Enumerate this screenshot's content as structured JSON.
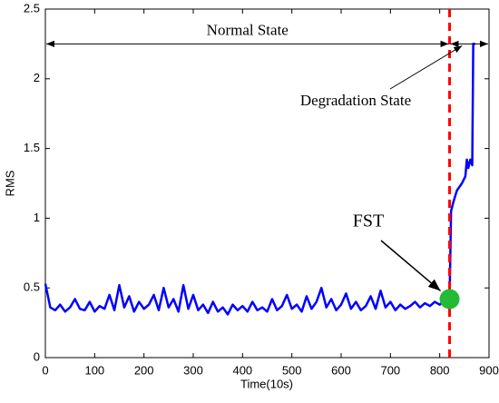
{
  "chart_data": {
    "type": "line",
    "xlabel": "Time(10s)",
    "ylabel": "RMS",
    "xlim": [
      0,
      900
    ],
    "ylim": [
      0,
      2.5
    ],
    "xticks": [
      0,
      100,
      200,
      300,
      400,
      500,
      600,
      700,
      800,
      900
    ],
    "yticks": [
      0,
      0.5,
      1,
      1.5,
      2,
      2.5
    ],
    "series": [
      {
        "color": "#0000ff",
        "x": [
          0,
          10,
          20,
          30,
          40,
          50,
          60,
          70,
          80,
          90,
          100,
          110,
          120,
          130,
          140,
          150,
          160,
          170,
          180,
          190,
          200,
          210,
          220,
          230,
          240,
          250,
          260,
          270,
          280,
          290,
          300,
          310,
          320,
          330,
          340,
          350,
          360,
          370,
          380,
          390,
          400,
          410,
          420,
          430,
          440,
          450,
          460,
          470,
          480,
          490,
          500,
          510,
          520,
          530,
          540,
          550,
          560,
          570,
          580,
          590,
          600,
          610,
          620,
          630,
          640,
          650,
          660,
          670,
          680,
          690,
          700,
          710,
          720,
          730,
          740,
          750,
          760,
          770,
          780,
          790,
          800,
          810,
          820,
          823,
          828,
          835,
          845,
          852,
          855,
          858,
          862,
          866,
          868,
          872
        ],
        "values": [
          0.53,
          0.36,
          0.34,
          0.38,
          0.33,
          0.36,
          0.42,
          0.35,
          0.34,
          0.4,
          0.33,
          0.37,
          0.35,
          0.45,
          0.34,
          0.52,
          0.36,
          0.44,
          0.33,
          0.4,
          0.35,
          0.38,
          0.45,
          0.34,
          0.5,
          0.36,
          0.42,
          0.33,
          0.52,
          0.35,
          0.45,
          0.34,
          0.38,
          0.32,
          0.4,
          0.33,
          0.36,
          0.31,
          0.38,
          0.34,
          0.37,
          0.33,
          0.4,
          0.34,
          0.36,
          0.33,
          0.42,
          0.34,
          0.37,
          0.45,
          0.35,
          0.38,
          0.33,
          0.44,
          0.35,
          0.4,
          0.5,
          0.36,
          0.42,
          0.34,
          0.38,
          0.46,
          0.35,
          0.4,
          0.34,
          0.37,
          0.44,
          0.35,
          0.48,
          0.36,
          0.4,
          0.34,
          0.38,
          0.35,
          0.37,
          0.4,
          0.36,
          0.39,
          0.37,
          0.4,
          0.38,
          0.41,
          0.42,
          1.05,
          1.12,
          1.2,
          1.25,
          1.3,
          1.42,
          1.36,
          1.42,
          1.38,
          2.25,
          2.25
        ]
      }
    ],
    "threshold_x": 820,
    "threshold_color": "#ff0000",
    "annotations": {
      "normal_state": {
        "text": "Normal State",
        "x": [
          0,
          820
        ],
        "y": 2.25
      },
      "degradation_state": {
        "text": "Degradation State",
        "x": [
          820,
          900
        ],
        "y": 2.25
      },
      "fst": {
        "text": "FST",
        "x": 820,
        "y": 0.42,
        "color": "#22bb33",
        "text_color": "#ff0000"
      }
    }
  }
}
